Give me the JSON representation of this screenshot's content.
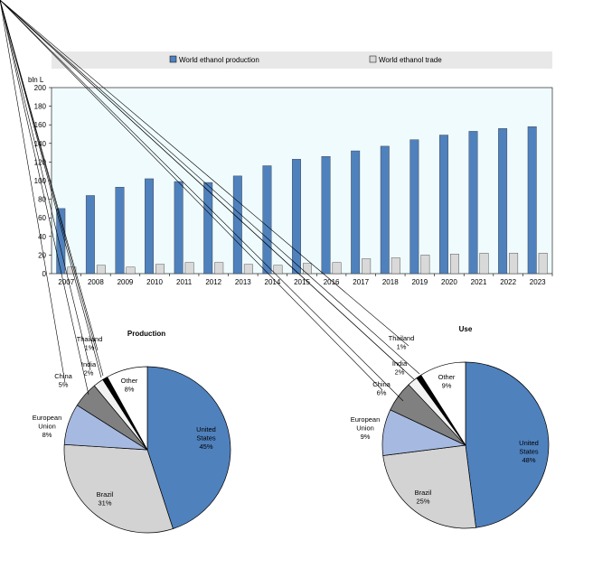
{
  "chart_data": [
    {
      "type": "bar",
      "title": "",
      "xlabel": "",
      "ylabel": "bln L",
      "ylim": [
        0,
        200
      ],
      "yticks": [
        0,
        20,
        40,
        60,
        80,
        100,
        120,
        140,
        160,
        180,
        200
      ],
      "grid": false,
      "legend_position": "top",
      "categories": [
        "2007",
        "2008",
        "2009",
        "2010",
        "2011",
        "2012",
        "2013",
        "2014",
        "2015",
        "2016",
        "2017",
        "2018",
        "2019",
        "2020",
        "2021",
        "2022",
        "2023"
      ],
      "series": [
        {
          "name": "World ethanol production",
          "color": "#4f81bd",
          "values": [
            70,
            84,
            93,
            102,
            99,
            98,
            105,
            116,
            123,
            126,
            132,
            137,
            144,
            149,
            153,
            156,
            158
          ]
        },
        {
          "name": "World ethanol trade",
          "color": "#d9d9d9",
          "values": [
            7,
            9,
            7,
            10,
            12,
            12,
            10,
            9,
            11,
            12,
            16,
            17,
            20,
            21,
            22,
            22,
            22
          ]
        }
      ]
    },
    {
      "type": "pie",
      "title": "Production",
      "slices": [
        {
          "label": "United\nStates",
          "value": 45,
          "text": "45%",
          "color": "#4f81bd"
        },
        {
          "label": "Brazil",
          "value": 31,
          "text": "31%",
          "color": "#d3d3d3"
        },
        {
          "label": "European\nUnion",
          "value": 8,
          "text": "8%",
          "color": "#a6b9e0"
        },
        {
          "label": "China",
          "value": 5,
          "text": "5%",
          "color": "#808080"
        },
        {
          "label": "India",
          "value": 2,
          "text": "2%",
          "color": "#f2f2f2"
        },
        {
          "label": "Thailand",
          "value": 1,
          "text": "1%",
          "color": "#000000"
        },
        {
          "label": "Other",
          "value": 8,
          "text": "8%",
          "color": "#ffffff"
        }
      ]
    },
    {
      "type": "pie",
      "title": "Use",
      "slices": [
        {
          "label": "United\nStates",
          "value": 48,
          "text": "48%",
          "color": "#4f81bd"
        },
        {
          "label": "Brazil",
          "value": 25,
          "text": "25%",
          "color": "#d3d3d3"
        },
        {
          "label": "European\nUnion",
          "value": 9,
          "text": "9%",
          "color": "#a6b9e0"
        },
        {
          "label": "China",
          "value": 6,
          "text": "6%",
          "color": "#808080"
        },
        {
          "label": "India",
          "value": 2,
          "text": "2%",
          "color": "#f2f2f2"
        },
        {
          "label": "Thailand",
          "value": 1,
          "text": "1%",
          "color": "#000000"
        },
        {
          "label": "Other",
          "value": 9,
          "text": "9%",
          "color": "#ffffff"
        }
      ]
    }
  ]
}
